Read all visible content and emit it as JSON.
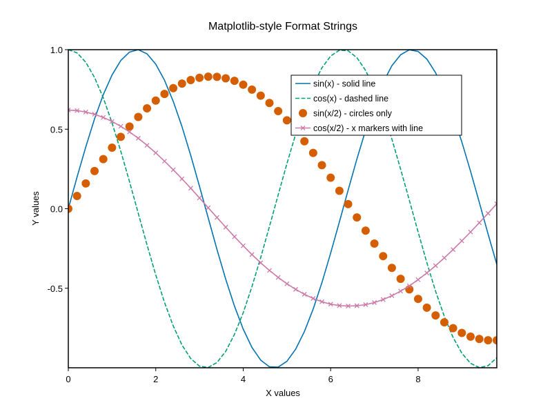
{
  "chart_data": {
    "type": "line",
    "title": "Matplotlib-style Format Strings",
    "xlabel": "X values",
    "ylabel": "Y values",
    "xlim": [
      0,
      9.8
    ],
    "ylim": [
      -1.0,
      1.0
    ],
    "xticks": [
      0,
      2,
      4,
      6,
      8
    ],
    "xtick_labels": [
      "0",
      "2",
      "4",
      "6",
      "8"
    ],
    "yticks": [
      1.0,
      0.5,
      0.0,
      -0.5
    ],
    "ytick_labels": [
      "1.0",
      "0.5",
      "0.0",
      "-0.5"
    ],
    "grid": false,
    "legend_position": "top-right",
    "x_start": 0,
    "x_step": 0.2,
    "n_points": 50,
    "series": [
      {
        "name": "sin(x) - solid line",
        "color": "#0072B2",
        "style": "solid",
        "marker": "none",
        "values": [
          0.0,
          0.199,
          0.389,
          0.565,
          0.717,
          0.841,
          0.932,
          0.985,
          1.0,
          0.974,
          0.909,
          0.808,
          0.675,
          0.516,
          0.335,
          0.141,
          -0.058,
          -0.256,
          -0.443,
          -0.612,
          -0.757,
          -0.872,
          -0.952,
          -0.994,
          -0.996,
          -0.959,
          -0.883,
          -0.772,
          -0.631,
          -0.465,
          -0.279,
          -0.083,
          0.117,
          0.312,
          0.494,
          0.657,
          0.794,
          0.899,
          0.968,
          0.999,
          0.989,
          0.941,
          0.855,
          0.736,
          0.589,
          0.42,
          0.235,
          0.04,
          -0.159,
          -0.35
        ]
      },
      {
        "name": "cos(x) - dashed line",
        "color": "#009E73",
        "style": "dashed",
        "marker": "none",
        "values": [
          1.0,
          0.98,
          0.921,
          0.825,
          0.697,
          0.54,
          0.362,
          0.17,
          -0.029,
          -0.227,
          -0.416,
          -0.589,
          -0.737,
          -0.857,
          -0.942,
          -0.99,
          -0.998,
          -0.967,
          -0.897,
          -0.79,
          -0.654,
          -0.49,
          -0.307,
          -0.112,
          0.087,
          0.284,
          0.469,
          0.635,
          0.776,
          0.886,
          0.96,
          0.997,
          0.993,
          0.95,
          0.869,
          0.754,
          0.608,
          0.438,
          0.249,
          0.053,
          -0.146,
          -0.339,
          -0.519,
          -0.677,
          -0.809,
          -0.908,
          -0.972,
          -0.999,
          -0.987,
          -0.937
        ]
      },
      {
        "name": "sin(x/2) - circles only",
        "color": "#D55E00",
        "style": "none",
        "marker": "circle",
        "values": [
          0.0,
          0.08,
          0.159,
          0.237,
          0.312,
          0.384,
          0.452,
          0.517,
          0.577,
          0.631,
          0.68,
          0.722,
          0.758,
          0.787,
          0.809,
          0.823,
          0.83,
          0.829,
          0.82,
          0.804,
          0.78,
          0.749,
          0.711,
          0.665,
          0.614,
          0.556,
          0.492,
          0.424,
          0.351,
          0.274,
          0.195,
          0.113,
          0.029,
          -0.055,
          -0.138,
          -0.219,
          -0.298,
          -0.372,
          -0.441,
          -0.507,
          -0.567,
          -0.622,
          -0.671,
          -0.714,
          -0.751,
          -0.781,
          -0.804,
          -0.819,
          -0.827,
          -0.827
        ]
      },
      {
        "name": "cos(x/2) - x markers with line",
        "color": "#CC79A7",
        "style": "solid",
        "marker": "x",
        "values": [
          0.62,
          0.617,
          0.608,
          0.594,
          0.574,
          0.549,
          0.518,
          0.483,
          0.443,
          0.399,
          0.351,
          0.299,
          0.245,
          0.188,
          0.129,
          0.068,
          0.006,
          -0.055,
          -0.116,
          -0.176,
          -0.233,
          -0.288,
          -0.34,
          -0.388,
          -0.432,
          -0.472,
          -0.507,
          -0.538,
          -0.564,
          -0.585,
          -0.6,
          -0.609,
          -0.612,
          -0.61,
          -0.603,
          -0.59,
          -0.571,
          -0.547,
          -0.518,
          -0.485,
          -0.446,
          -0.404,
          -0.358,
          -0.309,
          -0.257,
          -0.202,
          -0.146,
          -0.088,
          -0.029,
          0.031
        ]
      }
    ]
  }
}
